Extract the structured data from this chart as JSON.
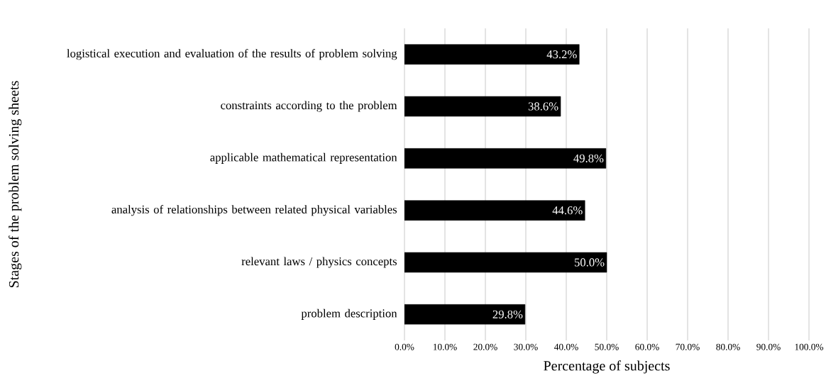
{
  "chart_data": {
    "type": "bar",
    "orientation": "horizontal",
    "xlabel": "Percentage of subjects",
    "ylabel": "Stages of the problem solving sheets",
    "categories": [
      "logistical execution and evaluation of the results of problem solving",
      "constraints according to the problem",
      "applicable mathematical representation",
      "analysis of relationships between related physical variables",
      "relevant laws / physics concepts",
      "problem description"
    ],
    "values": [
      43.2,
      38.6,
      49.8,
      44.6,
      50.0,
      29.8
    ],
    "value_labels": [
      "43.2%",
      "38.6%",
      "49.8%",
      "44.6%",
      "50.0%",
      "29.8%"
    ],
    "color": "#000000",
    "xlim": [
      0,
      100
    ],
    "xticks": [
      {
        "value": 0,
        "label": "0.0%"
      },
      {
        "value": 10,
        "label": "10.0%"
      },
      {
        "value": 20,
        "label": "20.0%"
      },
      {
        "value": 30,
        "label": "30.0%"
      },
      {
        "value": 40,
        "label": "40.0%"
      },
      {
        "value": 50,
        "label": "50.0%"
      },
      {
        "value": 60,
        "label": "60.0%"
      },
      {
        "value": 70,
        "label": "70.0%"
      },
      {
        "value": 80,
        "label": "80.0%"
      },
      {
        "value": 90,
        "label": "90.0%"
      },
      {
        "value": 100,
        "label": "100.0%"
      }
    ],
    "grid": "x"
  }
}
